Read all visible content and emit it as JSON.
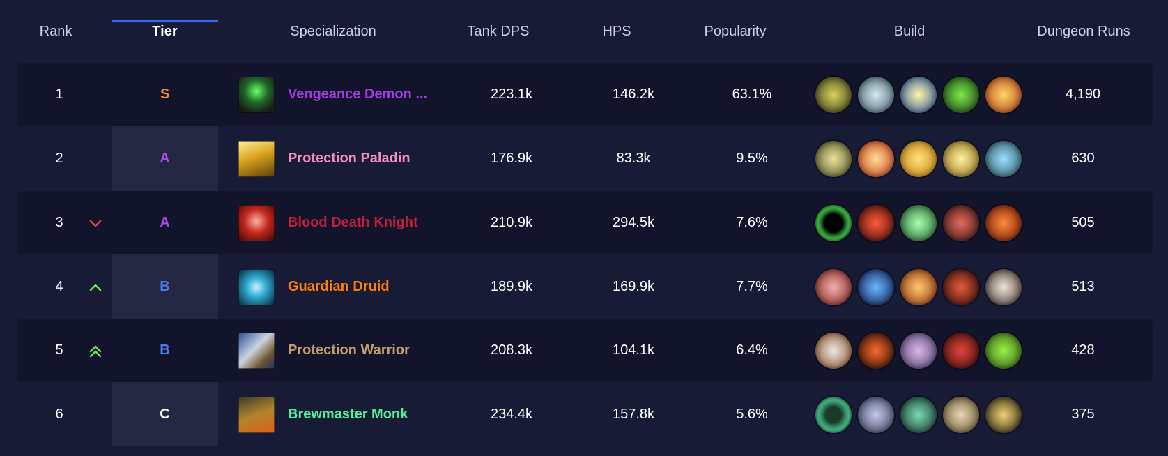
{
  "headers": {
    "rank": "Rank",
    "tier": "Tier",
    "specialization": "Specialization",
    "tank_dps": "Tank DPS",
    "hps": "HPS",
    "popularity": "Popularity",
    "build": "Build",
    "dungeon_runs": "Dungeon Runs"
  },
  "colors": {
    "tier_S": "#f0883c",
    "tier_A": "#a94af0",
    "tier_B": "#4a7cf2",
    "tier_C": "#ffffff",
    "trend_down": "#e2454f",
    "trend_up": "#6fe05a"
  },
  "rows": [
    {
      "rank": "1",
      "trend": "none",
      "tier": "S",
      "spec": "Vengeance Demon ...",
      "spec_color": "#a33be0",
      "spec_icon": "demon-hunter-icon",
      "dps": "223.1k",
      "hps": "146.2k",
      "popularity": "63.1%",
      "runs": "4,190",
      "build": [
        "talent-icon-1",
        "talent-icon-2",
        "talent-icon-3",
        "talent-icon-4",
        "talent-icon-5"
      ]
    },
    {
      "rank": "2",
      "trend": "none",
      "tier": "A",
      "spec": "Protection Paladin",
      "spec_color": "#f58cba",
      "spec_icon": "paladin-icon",
      "dps": "176.9k",
      "hps": "83.3k",
      "popularity": "9.5%",
      "runs": "630",
      "build": [
        "talent-icon-1",
        "talent-icon-2",
        "talent-icon-3",
        "talent-icon-4",
        "talent-icon-5"
      ]
    },
    {
      "rank": "3",
      "trend": "down",
      "tier": "A",
      "spec": "Blood Death Knight",
      "spec_color": "#c41e3a",
      "spec_icon": "death-knight-icon",
      "dps": "210.9k",
      "hps": "294.5k",
      "popularity": "7.6%",
      "runs": "505",
      "build": [
        "talent-icon-1",
        "talent-icon-2",
        "talent-icon-3",
        "talent-icon-4",
        "talent-icon-5"
      ]
    },
    {
      "rank": "4",
      "trend": "up",
      "tier": "B",
      "spec": "Guardian Druid",
      "spec_color": "#ff7d0a",
      "spec_icon": "druid-icon",
      "dps": "189.9k",
      "hps": "169.9k",
      "popularity": "7.7%",
      "runs": "513",
      "build": [
        "talent-icon-1",
        "talent-icon-2",
        "talent-icon-3",
        "talent-icon-4",
        "talent-icon-5"
      ]
    },
    {
      "rank": "5",
      "trend": "double-up",
      "tier": "B",
      "spec": "Protection Warrior",
      "spec_color": "#c69b6d",
      "spec_icon": "warrior-icon",
      "dps": "208.3k",
      "hps": "104.1k",
      "popularity": "6.4%",
      "runs": "428",
      "build": [
        "talent-icon-1",
        "talent-icon-2",
        "talent-icon-3",
        "talent-icon-4",
        "talent-icon-5"
      ]
    },
    {
      "rank": "6",
      "trend": "none",
      "tier": "C",
      "spec": "Brewmaster Monk",
      "spec_color": "#52f09a",
      "spec_icon": "monk-icon",
      "dps": "234.4k",
      "hps": "157.8k",
      "popularity": "5.6%",
      "runs": "375",
      "build": [
        "talent-icon-1",
        "talent-icon-2",
        "talent-icon-3",
        "talent-icon-4",
        "talent-icon-5"
      ]
    }
  ]
}
